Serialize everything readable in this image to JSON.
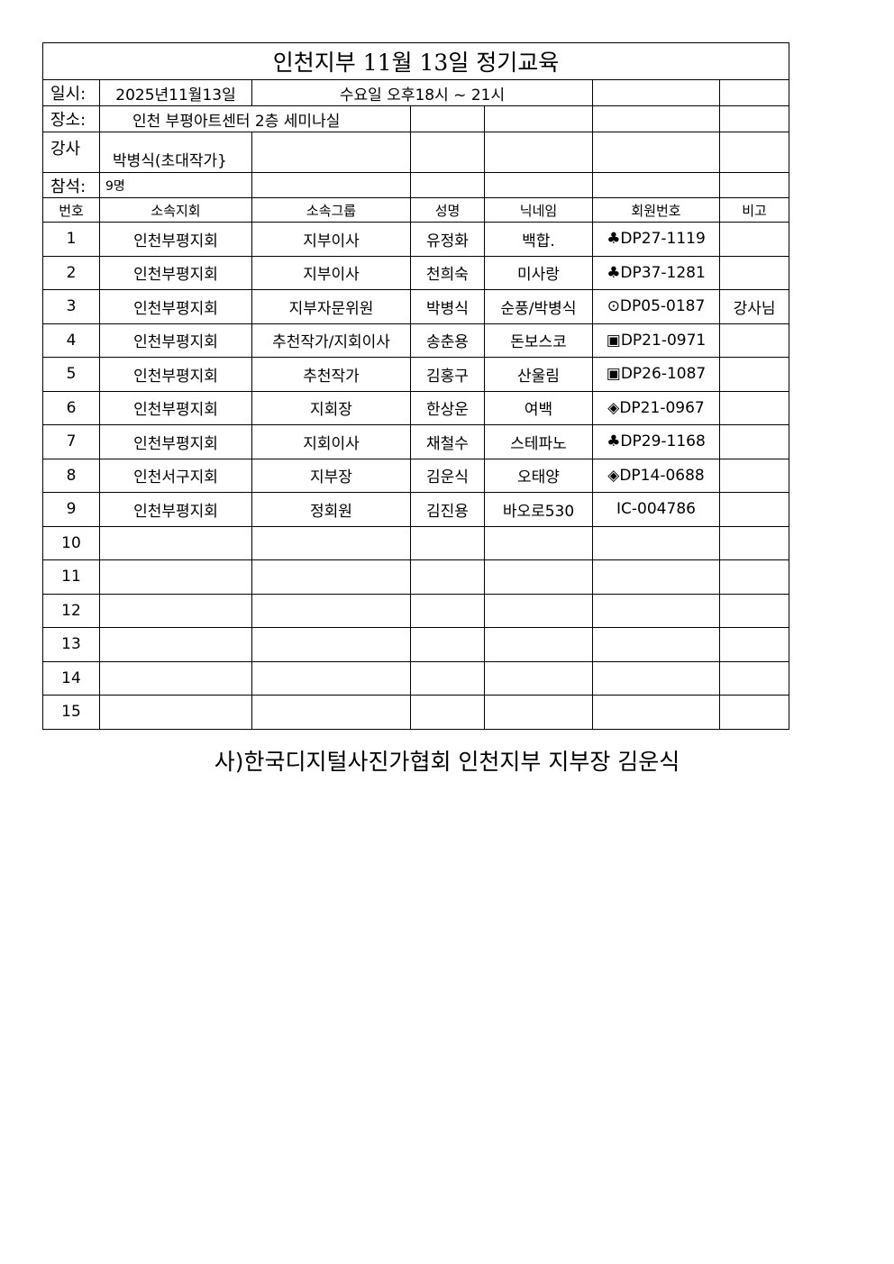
{
  "title": "인천지부 11월 13일 정기교육",
  "info": {
    "date_label": "일시:",
    "date_value": "2025년11월13일",
    "time_value": "수요일 오후18시 ~ 21시",
    "place_label": "장소:",
    "place_value": "인천 부평아트센터 2층 세미나실",
    "lecturer_label": "강사",
    "lecturer_value": "박병식(초대작가}",
    "attendance_label": "참석:",
    "attendance_value": "9명"
  },
  "headers": [
    "번호",
    "소속지회",
    "소속그룹",
    "성명",
    "닉네임",
    "회원번호",
    "비고"
  ],
  "rows": [
    [
      "1",
      "인천부평지회",
      "지부이사",
      "유정화",
      "백합.",
      "♣DP27-1119",
      ""
    ],
    [
      "2",
      "인천부평지회",
      "지부이사",
      "천희숙",
      "미사랑",
      "♣DP37-1281",
      ""
    ],
    [
      "3",
      "인천부평지회",
      "지부자문위원",
      "박병식",
      "순풍/박병식",
      "⊙DP05-0187",
      "강사님"
    ],
    [
      "4",
      "인천부평지회",
      "추천작가/지회이사",
      "송춘용",
      "돈보스코",
      "▣DP21-0971",
      ""
    ],
    [
      "5",
      "인천부평지회",
      "추천작가",
      "김홍구",
      "산울림",
      "▣DP26-1087",
      ""
    ],
    [
      "6",
      "인천부평지회",
      "지회장",
      "한상운",
      "여백",
      "◈DP21-0967",
      ""
    ],
    [
      "7",
      "인천부평지회",
      "지회이사",
      "채철수",
      "스테파노",
      "♣DP29-1168",
      ""
    ],
    [
      "8",
      "인천서구지회",
      "지부장",
      "김운식",
      "오태양",
      "◈DP14-0688",
      ""
    ],
    [
      "9",
      "인천부평지회",
      "정회원",
      "김진용",
      "바오로530",
      "IC-004786",
      ""
    ],
    [
      "10",
      "",
      "",
      "",
      "",
      "",
      ""
    ],
    [
      "11",
      "",
      "",
      "",
      "",
      "",
      ""
    ],
    [
      "12",
      "",
      "",
      "",
      "",
      "",
      ""
    ],
    [
      "13",
      "",
      "",
      "",
      "",
      "",
      ""
    ],
    [
      "14",
      "",
      "",
      "",
      "",
      "",
      ""
    ],
    [
      "15",
      "",
      "",
      "",
      "",
      "",
      ""
    ]
  ],
  "footer": "사)한국디지털사진가협회 인천지부 지부장 김운식"
}
